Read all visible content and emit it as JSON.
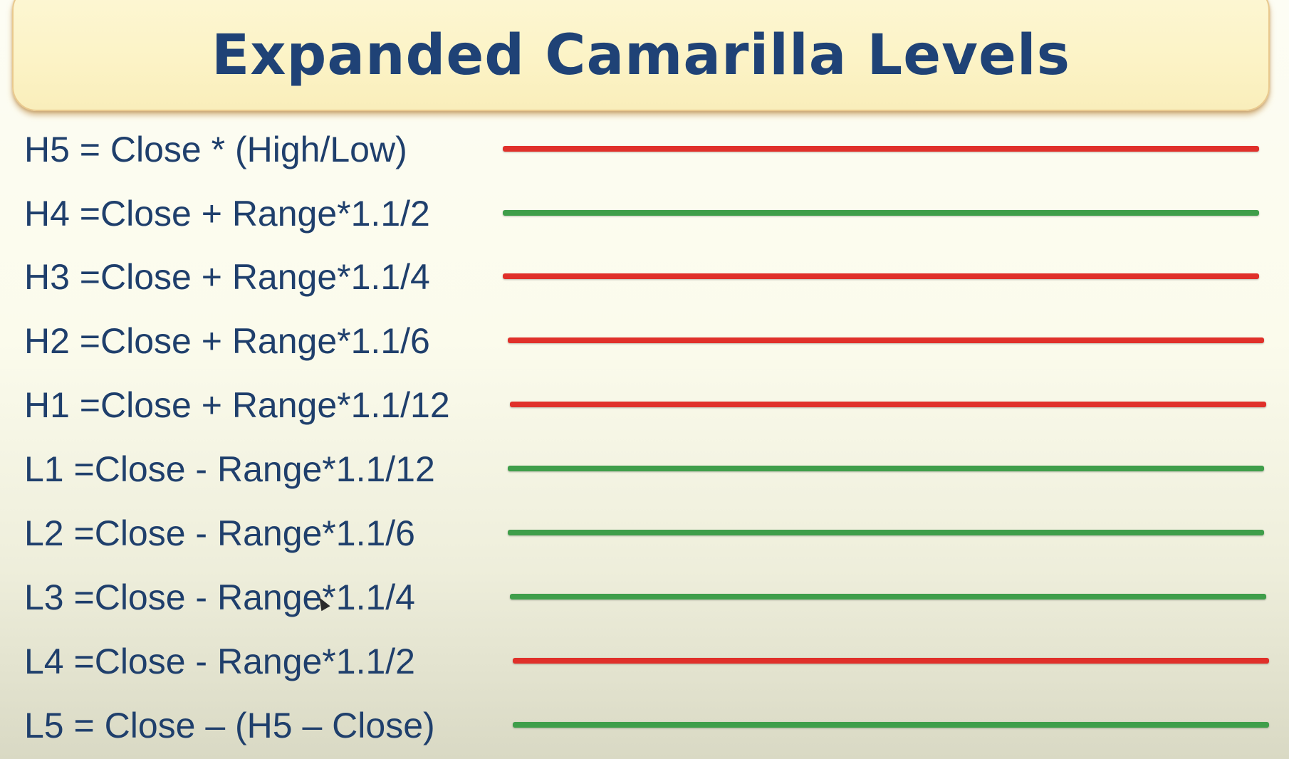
{
  "title": "Expanded Camarilla Levels",
  "colors": {
    "red": "#e0302a",
    "green": "#3f9e4a",
    "text": "#1f3f6c",
    "title": "#1f4276"
  },
  "levels": [
    {
      "formula": "H5 = Close * (High/Low)",
      "line_color": "red"
    },
    {
      "formula": "H4 =Close + Range*1.1/2",
      "line_color": "green"
    },
    {
      "formula": "H3 =Close + Range*1.1/4",
      "line_color": "red"
    },
    {
      "formula": "H2 =Close + Range*1.1/6",
      "line_color": "red"
    },
    {
      "formula": "H1 =Close + Range*1.1/12",
      "line_color": "red"
    },
    {
      "formula": "L1 =Close - Range*1.1/12",
      "line_color": "green"
    },
    {
      "formula": "L2 =Close - Range*1.1/6",
      "line_color": "green"
    },
    {
      "formula": "L3 =Close - Range*1.1/4",
      "line_color": "green"
    },
    {
      "formula": "L4 =Close - Range*1.1/2",
      "line_color": "red"
    },
    {
      "formula": "L5 = Close – (H5 – Close)",
      "line_color": "green"
    }
  ]
}
